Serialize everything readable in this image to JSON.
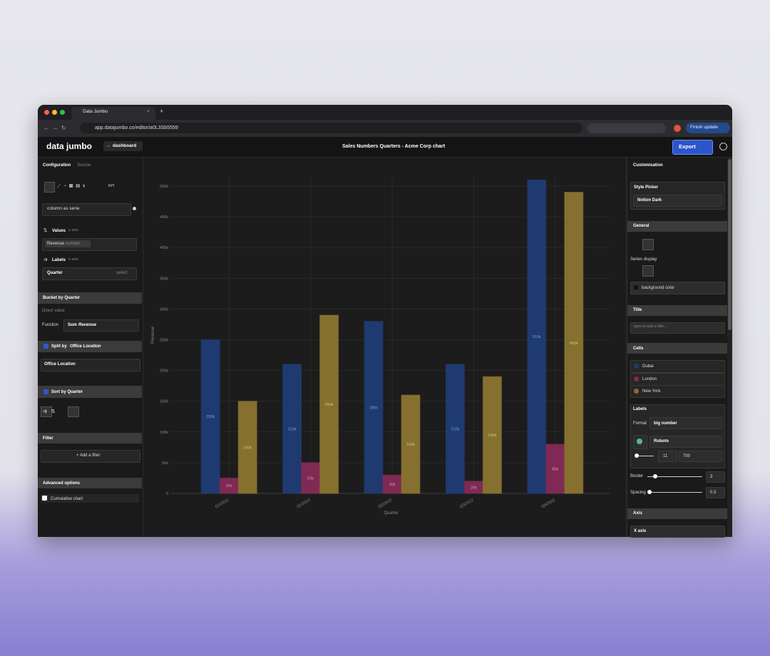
{
  "browser": {
    "tab_title": "Data Jumbo",
    "url": "app.datajumbo.co/editor/a0L3Sb5559",
    "update_button": "Finish update"
  },
  "header": {
    "logo": "data jumbo",
    "back_button": "dashboard",
    "chart_title": "Sales Numbers Quarters - Acme Corp chart",
    "export_button": "Export"
  },
  "left_panel": {
    "tabs": [
      "Configuration",
      "Source"
    ],
    "kpi_icon": "KPI",
    "mode": "column as serie",
    "values": {
      "label": "Values",
      "hint": "y axis",
      "field": "Revenue",
      "field_type": "number"
    },
    "labels": {
      "label": "Labels",
      "hint": "x axis",
      "field": "Quarter",
      "placeholder": "select"
    },
    "bucket": {
      "title": "Bucket by Quarter",
      "mode": "Direct value",
      "function_label": "Function",
      "function": "Sum",
      "function_field": "Revenue"
    },
    "split": {
      "title": "Split by",
      "field": "Office Location",
      "value": "Office Location"
    },
    "sort": {
      "title": "Sort by Quarter"
    },
    "filter": {
      "title": "Filter",
      "button": "+ Add a filter"
    },
    "advanced": {
      "title": "Advanced options",
      "cumulative": "Cumulative chart"
    }
  },
  "right_panel": {
    "title": "Customisation",
    "style_picker": {
      "label": "Style Picker",
      "value": "Notion Dark"
    },
    "general": {
      "title": "General",
      "series_display": "Series display",
      "background": "background color"
    },
    "title_section": {
      "title": "Title",
      "placeholder": "type to add a title..."
    },
    "cells": {
      "title": "Cells"
    },
    "labels": {
      "title": "Labels",
      "format_label": "Format",
      "format": "big number",
      "font": "Roboto",
      "size": 11,
      "weight": 700
    },
    "border": {
      "label": "Border",
      "value": 3
    },
    "spacing": {
      "label": "Spacing",
      "value": 0.3
    },
    "axis": {
      "title": "Axis",
      "x_axis": "X axis"
    }
  },
  "chart_data": {
    "type": "bar",
    "x_label": "Quarter",
    "y_label": "Revenue",
    "categories": [
      "Q1/2022",
      "Q1/2023",
      "Q2/2022",
      "Q3/2022",
      "Q4/2022"
    ],
    "series": [
      {
        "name": "Dubai",
        "color": "#1f3a70",
        "label_color": "#5fa8e0",
        "values": [
          250000,
          210000,
          280000,
          210000,
          510000
        ],
        "value_labels": [
          "250k",
          "210k",
          "280k",
          "210k",
          "510k"
        ]
      },
      {
        "name": "London",
        "color": "#7e2a55",
        "label_color": "#e88ab4",
        "values": [
          25000,
          50000,
          30000,
          20000,
          80000
        ],
        "value_labels": [
          "25k",
          "50k",
          "30k",
          "20k",
          "80k"
        ]
      },
      {
        "name": "New York",
        "color": "#86702f",
        "label_color": "#b8d86a",
        "values": [
          150000,
          290000,
          160000,
          190000,
          490000
        ],
        "value_labels": [
          "150k",
          "290k",
          "160k",
          "190k",
          "490k"
        ]
      }
    ],
    "ylim": [
      0,
      515000
    ],
    "yticks": [
      0,
      {
        "value": 50000,
        "label": "50k"
      },
      {
        "value": 100000,
        "label": "100k"
      },
      {
        "value": 150000,
        "label": "150k"
      },
      {
        "value": 200000,
        "label": "200k"
      },
      {
        "value": 250000,
        "label": "250k"
      },
      {
        "value": 300000,
        "label": "300k"
      },
      {
        "value": 350000,
        "label": "350k"
      },
      {
        "value": 400000,
        "label": "400k"
      },
      {
        "value": 450000,
        "label": "450k"
      },
      {
        "value": 500000,
        "label": "500k"
      }
    ],
    "grid": true
  }
}
